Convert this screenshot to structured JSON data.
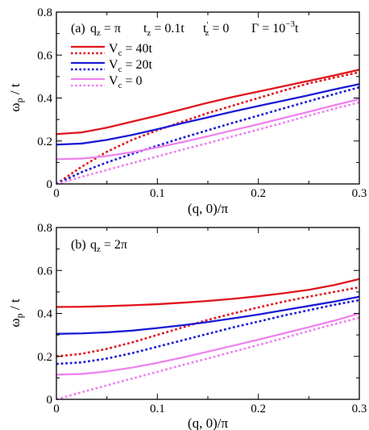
{
  "chart_data": [
    {
      "type": "line",
      "xlabel": "(q, 0)/π",
      "ylabel": "ω_p / t",
      "xlim": [
        0,
        0.3
      ],
      "ylim": [
        0,
        0.8
      ],
      "xticks": [
        "0",
        "0.1",
        "0.2",
        "0.3"
      ],
      "yticks": [
        "0",
        "0.2",
        "0.4",
        "0.6",
        "0.8"
      ],
      "annotation": {
        "tag": "(a)",
        "qz": "q_z = π",
        "tz": "t_z = 0.1t",
        "tzp": "t'_z = 0",
        "gamma": "Γ = 10^{-3}t"
      },
      "legend": {
        "placement": "top-left",
        "entries": [
          "V_c = 40t",
          "V_c = 20t",
          "V_c = 0"
        ]
      },
      "series": [
        {
          "name": "V_c = 40t",
          "color": "#e0141b",
          "style": "solid",
          "x": [
            0,
            0.025,
            0.05,
            0.075,
            0.1,
            0.125,
            0.15,
            0.175,
            0.2,
            0.225,
            0.25,
            0.275,
            0.3
          ],
          "y": [
            0.232,
            0.24,
            0.262,
            0.29,
            0.318,
            0.348,
            0.378,
            0.405,
            0.43,
            0.455,
            0.48,
            0.505,
            0.532
          ]
        },
        {
          "name": "V_c = 40t",
          "color": "#e0141b",
          "style": "dotted",
          "x": [
            0,
            0.025,
            0.05,
            0.075,
            0.1,
            0.125,
            0.15,
            0.175,
            0.2,
            0.225,
            0.25,
            0.275,
            0.3
          ],
          "y": [
            0.0,
            0.08,
            0.15,
            0.205,
            0.25,
            0.29,
            0.33,
            0.365,
            0.4,
            0.435,
            0.468,
            0.495,
            0.52
          ]
        },
        {
          "name": "V_c = 20t",
          "color": "#1a1ad6",
          "style": "solid",
          "x": [
            0,
            0.025,
            0.05,
            0.075,
            0.1,
            0.125,
            0.15,
            0.175,
            0.2,
            0.225,
            0.25,
            0.275,
            0.3
          ],
          "y": [
            0.183,
            0.188,
            0.205,
            0.228,
            0.255,
            0.283,
            0.31,
            0.337,
            0.363,
            0.388,
            0.413,
            0.44,
            0.465
          ]
        },
        {
          "name": "V_c = 20t",
          "color": "#1a1ad6",
          "style": "dotted",
          "x": [
            0,
            0.025,
            0.05,
            0.075,
            0.1,
            0.125,
            0.15,
            0.175,
            0.2,
            0.225,
            0.25,
            0.275,
            0.3
          ],
          "y": [
            0.0,
            0.055,
            0.1,
            0.14,
            0.178,
            0.215,
            0.25,
            0.285,
            0.318,
            0.352,
            0.385,
            0.418,
            0.45
          ]
        },
        {
          "name": "V_c = 0",
          "color": "#ee82ee",
          "style": "solid",
          "x": [
            0,
            0.025,
            0.05,
            0.075,
            0.1,
            0.125,
            0.15,
            0.175,
            0.2,
            0.225,
            0.25,
            0.275,
            0.3
          ],
          "y": [
            0.115,
            0.118,
            0.13,
            0.148,
            0.17,
            0.195,
            0.222,
            0.25,
            0.278,
            0.307,
            0.336,
            0.366,
            0.395
          ]
        },
        {
          "name": "V_c = 0",
          "color": "#ee82ee",
          "style": "dotted",
          "x": [
            0,
            0.025,
            0.05,
            0.075,
            0.1,
            0.125,
            0.15,
            0.175,
            0.2,
            0.225,
            0.25,
            0.275,
            0.3
          ],
          "y": [
            0.0,
            0.033,
            0.065,
            0.097,
            0.128,
            0.16,
            0.19,
            0.222,
            0.253,
            0.285,
            0.318,
            0.35,
            0.38
          ]
        }
      ]
    },
    {
      "type": "line",
      "xlabel": "(q, 0)/π",
      "ylabel": "ω_p / t",
      "xlim": [
        0,
        0.3
      ],
      "ylim": [
        0,
        0.8
      ],
      "xticks": [
        "0",
        "0.1",
        "0.2",
        "0.3"
      ],
      "yticks": [
        "0",
        "0.2",
        "0.4",
        "0.6",
        "0.8"
      ],
      "annotation": {
        "tag": "(b)",
        "qz": "q_z = 2π"
      },
      "series": [
        {
          "name": "V_c = 40t",
          "color": "#e0141b",
          "style": "solid",
          "x": [
            0,
            0.025,
            0.05,
            0.075,
            0.1,
            0.125,
            0.15,
            0.175,
            0.2,
            0.225,
            0.25,
            0.275,
            0.3
          ],
          "y": [
            0.43,
            0.431,
            0.434,
            0.438,
            0.443,
            0.45,
            0.458,
            0.468,
            0.48,
            0.494,
            0.51,
            0.532,
            0.56
          ]
        },
        {
          "name": "V_c = 40t",
          "color": "#e0141b",
          "style": "dotted",
          "x": [
            0,
            0.025,
            0.05,
            0.075,
            0.1,
            0.125,
            0.15,
            0.175,
            0.2,
            0.225,
            0.25,
            0.275,
            0.3
          ],
          "y": [
            0.2,
            0.212,
            0.235,
            0.265,
            0.3,
            0.335,
            0.37,
            0.4,
            0.428,
            0.455,
            0.478,
            0.5,
            0.522
          ]
        },
        {
          "name": "V_c = 20t",
          "color": "#1a1ad6",
          "style": "solid",
          "x": [
            0,
            0.025,
            0.05,
            0.075,
            0.1,
            0.125,
            0.15,
            0.175,
            0.2,
            0.225,
            0.25,
            0.275,
            0.3
          ],
          "y": [
            0.305,
            0.307,
            0.312,
            0.32,
            0.332,
            0.345,
            0.36,
            0.377,
            0.395,
            0.415,
            0.435,
            0.455,
            0.478
          ]
        },
        {
          "name": "V_c = 20t",
          "color": "#1a1ad6",
          "style": "dotted",
          "x": [
            0,
            0.025,
            0.05,
            0.075,
            0.1,
            0.125,
            0.15,
            0.175,
            0.2,
            0.225,
            0.25,
            0.275,
            0.3
          ],
          "y": [
            0.165,
            0.172,
            0.19,
            0.215,
            0.245,
            0.275,
            0.305,
            0.335,
            0.362,
            0.39,
            0.415,
            0.44,
            0.462
          ]
        },
        {
          "name": "V_c = 0",
          "color": "#ee82ee",
          "style": "solid",
          "x": [
            0,
            0.025,
            0.05,
            0.075,
            0.1,
            0.125,
            0.15,
            0.175,
            0.2,
            0.225,
            0.25,
            0.275,
            0.3
          ],
          "y": [
            0.115,
            0.118,
            0.13,
            0.148,
            0.17,
            0.195,
            0.222,
            0.25,
            0.278,
            0.307,
            0.336,
            0.366,
            0.4
          ]
        },
        {
          "name": "V_c = 0",
          "color": "#ee82ee",
          "style": "dotted",
          "x": [
            0,
            0.025,
            0.05,
            0.075,
            0.1,
            0.125,
            0.15,
            0.175,
            0.2,
            0.225,
            0.25,
            0.275,
            0.3
          ],
          "y": [
            0.0,
            0.033,
            0.065,
            0.097,
            0.128,
            0.16,
            0.19,
            0.222,
            0.253,
            0.285,
            0.318,
            0.35,
            0.38
          ]
        }
      ]
    }
  ]
}
